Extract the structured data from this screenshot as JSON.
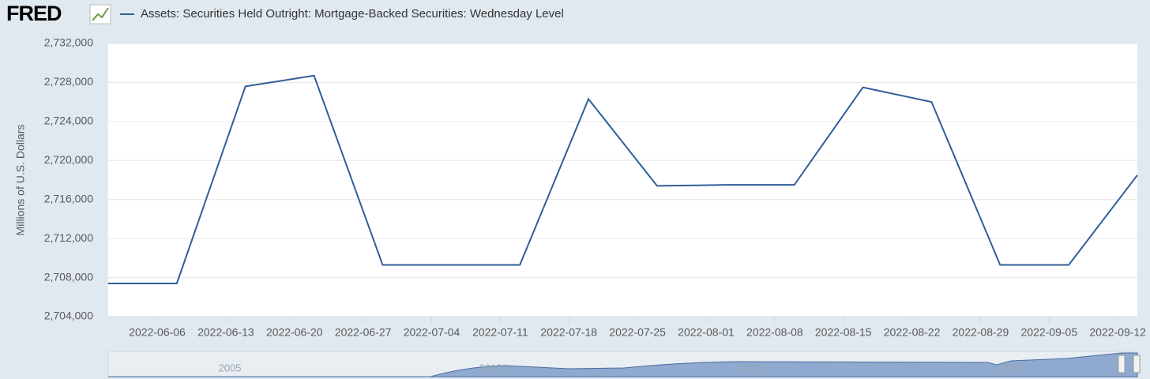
{
  "logo": "FRED",
  "chart_data": {
    "type": "line",
    "y_label": "Millions of U.S. Dollars",
    "x": [
      "2022-06-01",
      "2022-06-08",
      "2022-06-15",
      "2022-06-22",
      "2022-06-29",
      "2022-07-06",
      "2022-07-13",
      "2022-07-20",
      "2022-07-27",
      "2022-08-03",
      "2022-08-10",
      "2022-08-17",
      "2022-08-24",
      "2022-08-31",
      "2022-09-07",
      "2022-09-14"
    ],
    "series": [
      {
        "name": "Assets: Securities Held Outright: Mortgage-Backed Securities: Wednesday Level",
        "color": "#2f5f98",
        "values": [
          2707400,
          2707400,
          2727600,
          2728700,
          2709300,
          2709300,
          2709300,
          2726300,
          2717400,
          2717500,
          2717500,
          2727500,
          2726000,
          2709300,
          2709300,
          2718500
        ]
      }
    ],
    "xlim": [
      "2022-06-01",
      "2022-09-14"
    ],
    "xticks": [
      "2022-06-06",
      "2022-06-13",
      "2022-06-20",
      "2022-06-27",
      "2022-07-04",
      "2022-07-11",
      "2022-07-18",
      "2022-07-25",
      "2022-08-01",
      "2022-08-08",
      "2022-08-15",
      "2022-08-22",
      "2022-08-29",
      "2022-09-05",
      "2022-09-12"
    ],
    "ylim": [
      2704000,
      2732000
    ],
    "yticks": [
      {
        "value": 2704000,
        "label": "2,704,000"
      },
      {
        "value": 2708000,
        "label": "2,708,000"
      },
      {
        "value": 2712000,
        "label": "2,712,000"
      },
      {
        "value": 2716000,
        "label": "2,716,000"
      },
      {
        "value": 2720000,
        "label": "2,720,000"
      },
      {
        "value": 2724000,
        "label": "2,724,000"
      },
      {
        "value": 2728000,
        "label": "2,728,000"
      },
      {
        "value": 2732000,
        "label": "2,732,000"
      }
    ],
    "grid": true
  },
  "navigator": {
    "labels": [
      "2005",
      "2010",
      "2015",
      "2020"
    ]
  }
}
